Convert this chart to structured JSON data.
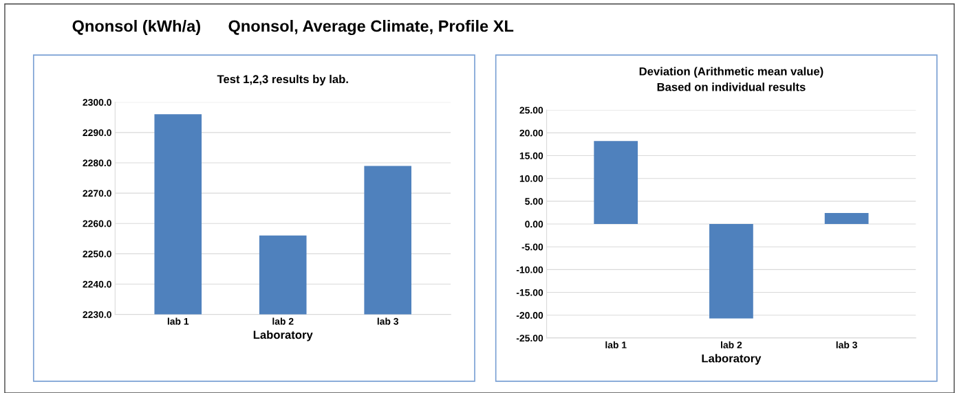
{
  "chart_data": [
    {
      "type": "bar",
      "title": "Test 1,2,3 results by lab.",
      "xlabel": "Laboratory",
      "categories": [
        "lab 1",
        "lab 2",
        "lab 3"
      ],
      "values": [
        2296,
        2256,
        2279
      ],
      "color": "#4f81bd",
      "ylim": [
        2230,
        2300
      ],
      "yticks": [
        {
          "value": 2230,
          "label": "2230.0"
        },
        {
          "value": 2240,
          "label": "2240.0"
        },
        {
          "value": 2250,
          "label": "2250.0"
        },
        {
          "value": 2260,
          "label": "2260.0"
        },
        {
          "value": 2270,
          "label": "2270.0"
        },
        {
          "value": 2280,
          "label": "2280.0"
        },
        {
          "value": 2290,
          "label": "2290.0"
        },
        {
          "value": 2300,
          "label": "2300.0"
        }
      ],
      "grid": "y",
      "annotations": [
        "Qnonsol (kWh/a)      Qnonsol, Average Climate, Profile XL"
      ]
    },
    {
      "type": "bar",
      "title": "Deviation (Arithmetic mean value)\nBased on individual results",
      "xlabel": "Laboratory",
      "categories": [
        "lab 1",
        "lab 2",
        "lab 3"
      ],
      "values": [
        18.2,
        -20.7,
        2.4
      ],
      "color": "#4f81bd",
      "ylim": [
        -25,
        25
      ],
      "yticks": [
        {
          "value": -25,
          "label": "-25.00"
        },
        {
          "value": -20,
          "label": "-20.00"
        },
        {
          "value": -15,
          "label": "-15.00"
        },
        {
          "value": -10,
          "label": "-10.00"
        },
        {
          "value": -5,
          "label": "-5.00"
        },
        {
          "value": 0,
          "label": "0.00"
        },
        {
          "value": 5,
          "label": "5.00"
        },
        {
          "value": 10,
          "label": "10.00"
        },
        {
          "value": 15,
          "label": "15.00"
        },
        {
          "value": 20,
          "label": "20.00"
        },
        {
          "value": 25,
          "label": "25.00"
        }
      ],
      "grid": "y"
    }
  ]
}
